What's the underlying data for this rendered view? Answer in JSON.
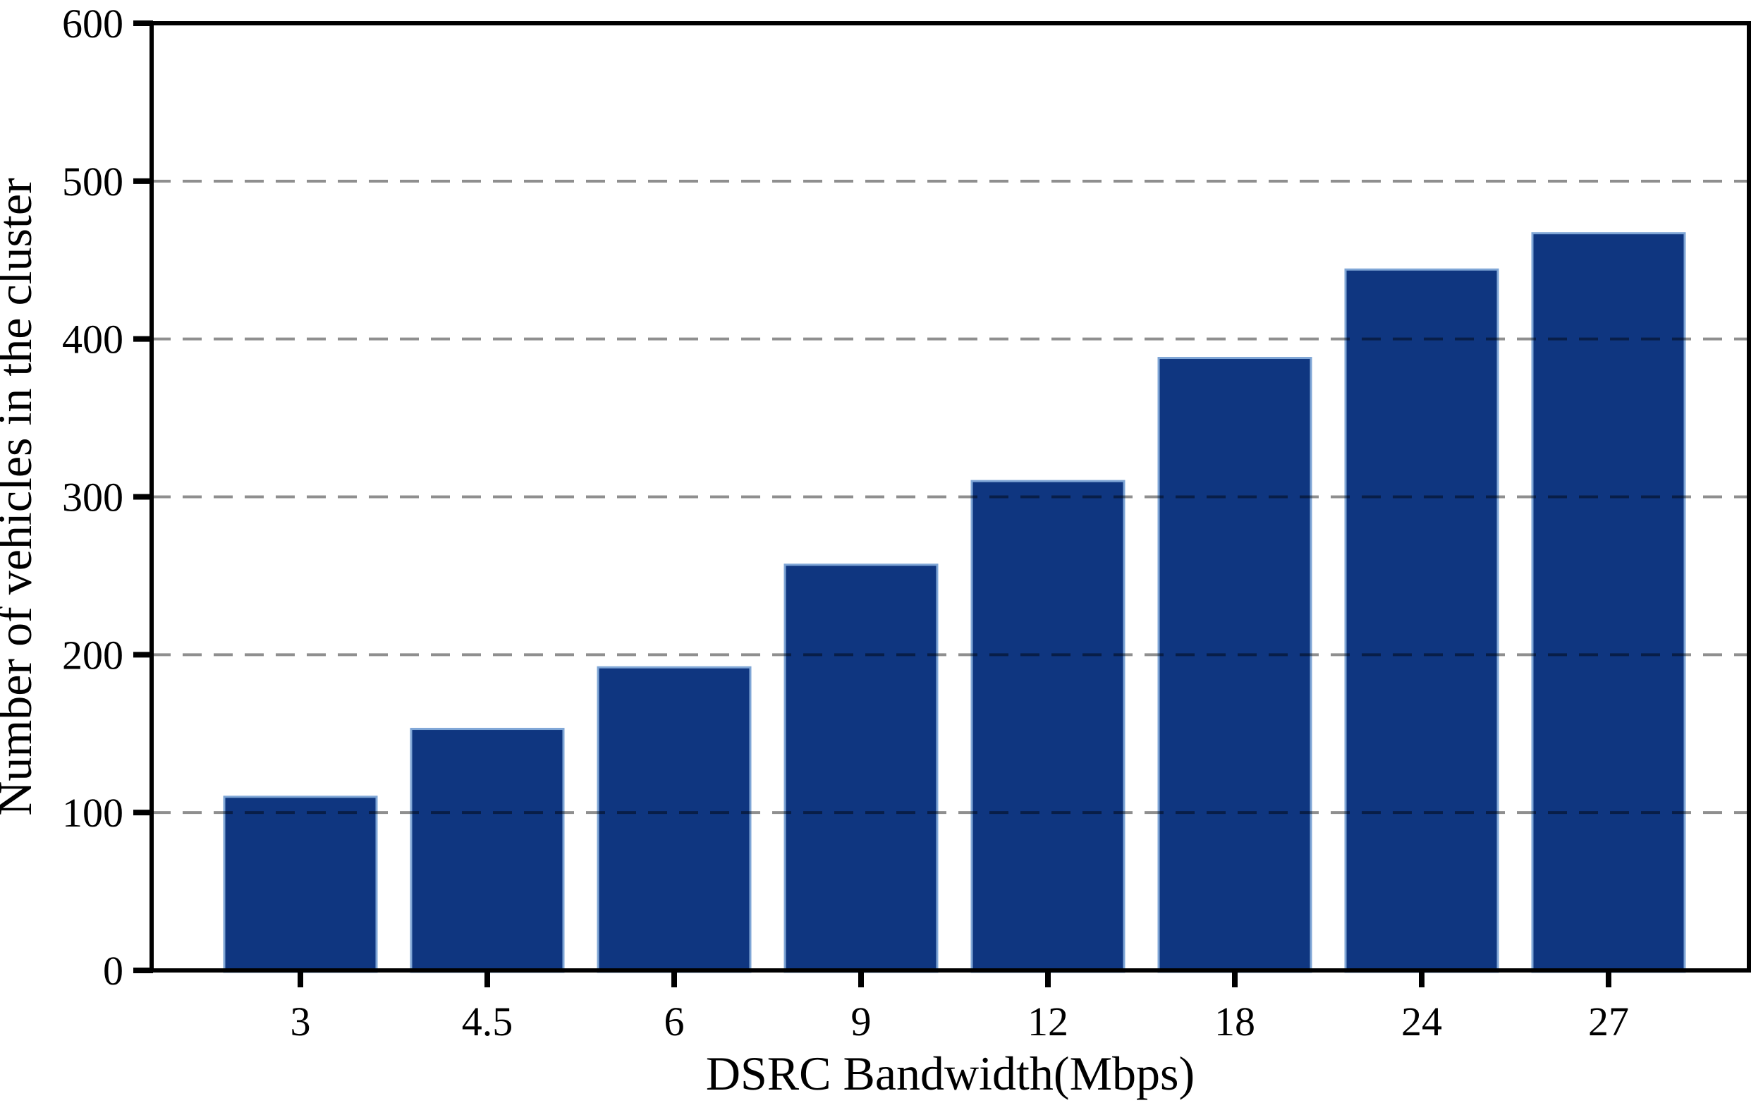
{
  "chart_data": {
    "type": "bar",
    "title": "",
    "xlabel": "DSRC Bandwidth(Mbps)",
    "ylabel": "Number of vehicles in the cluster",
    "categories": [
      "3",
      "4.5",
      "6",
      "9",
      "12",
      "18",
      "24",
      "27"
    ],
    "values": [
      110,
      153,
      192,
      257,
      310,
      388,
      444,
      467
    ],
    "ylim": [
      0,
      600
    ],
    "yticks": [
      0,
      100,
      200,
      300,
      400,
      500,
      600
    ],
    "grid": {
      "horizontal": true,
      "style": "dashed",
      "lines_at": [
        100,
        200,
        300,
        400,
        500
      ],
      "drawn_over_bars": true
    },
    "legend": "none",
    "colors": {
      "bar_fill": "#0f3680",
      "bar_edge": "#7fa6d6",
      "gridline": "#8f8f8f",
      "axis": "#000000",
      "background": "#ffffff"
    }
  }
}
